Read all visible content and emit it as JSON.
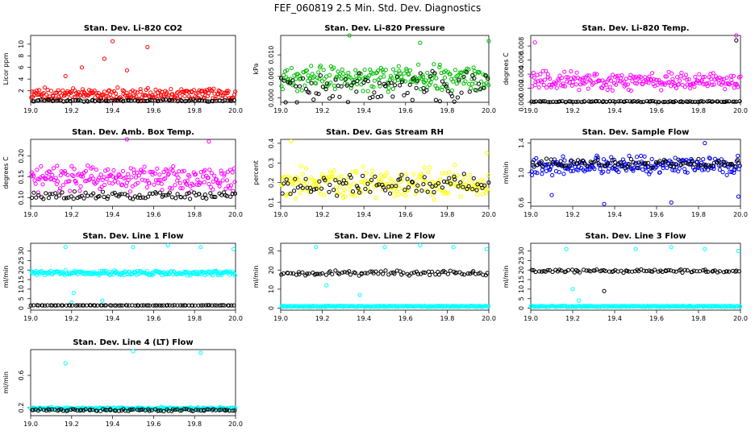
{
  "page": {
    "title": "FEF_060819  2.5 Min. Std. Dev. Diagnostics"
  },
  "chart_data": [
    {
      "type": "scatter",
      "title": "Stan. Dev. Li-820 CO2",
      "ylabel": "Licor ppm",
      "xlim": [
        19.0,
        20.0
      ],
      "ylim": [
        0,
        11.5
      ],
      "xticks": [
        "19.0",
        "19.2",
        "19.4",
        "19.6",
        "19.8",
        "20.0"
      ],
      "yticks": [
        2,
        4,
        6,
        8,
        10
      ],
      "series": [
        {
          "name": "primary",
          "color": "#ff0000",
          "base": 1.4,
          "spread": 1.2,
          "spikes": [
            [
              19.17,
              4.5
            ],
            [
              19.25,
              6.0
            ],
            [
              19.36,
              7.5
            ],
            [
              19.4,
              10.5
            ],
            [
              19.47,
              5.5
            ],
            [
              19.57,
              9.5
            ],
            [
              19.85,
              2.0
            ]
          ]
        },
        {
          "name": "reference",
          "color": "#000000",
          "base": 0.3,
          "spread": 0.2,
          "spikes": []
        }
      ]
    },
    {
      "type": "scatter",
      "title": "Stan. Dev. Li-820 Pressure",
      "ylabel": "kPa",
      "xlim": [
        19.0,
        20.0
      ],
      "ylim": [
        -0.001,
        0.0145
      ],
      "xticks": [
        "19.0",
        "19.2",
        "19.4",
        "19.6",
        "19.8",
        "20.0"
      ],
      "yticks": [
        0.0,
        0.005,
        0.01
      ],
      "series": [
        {
          "name": "primary",
          "color": "#00bb00",
          "base": 0.0045,
          "spread": 0.0035,
          "spikes": [
            [
              19.33,
              0.0145
            ],
            [
              19.67,
              0.0128
            ],
            [
              20.0,
              0.0132
            ]
          ]
        },
        {
          "name": "reference",
          "color": "#000000",
          "base": 0.0025,
          "spread": 0.0045,
          "spikes": []
        }
      ]
    },
    {
      "type": "scatter",
      "title": "Stan. Dev. Li-820 Temp.",
      "ylabel": "degrees C",
      "xlim": [
        19.0,
        20.0
      ],
      "ylim": [
        0,
        0.0095
      ],
      "xticks": [
        "19.0",
        "19.2",
        "19.4",
        "19.6",
        "19.8",
        "20.0"
      ],
      "yticks": [
        0.0,
        0.002,
        0.004,
        0.006,
        0.008
      ],
      "series": [
        {
          "name": "primary",
          "color": "#ff00ff",
          "base": 0.003,
          "spread": 0.0015,
          "spikes": [
            [
              19.02,
              0.0085
            ],
            [
              19.98,
              0.0095
            ]
          ]
        },
        {
          "name": "reference",
          "color": "#000000",
          "base": 0.0001,
          "spread": 0.0001,
          "spikes": [
            [
              19.98,
              0.0088
            ]
          ]
        }
      ]
    },
    {
      "type": "scatter",
      "title": "Stan. Dev. Amb. Box Temp.",
      "ylabel": "degrees C",
      "xlim": [
        19.0,
        20.0
      ],
      "ylim": [
        0.08,
        0.24
      ],
      "xticks": [
        "19.0",
        "19.2",
        "19.4",
        "19.6",
        "19.8",
        "20.0"
      ],
      "yticks": [
        0.1,
        0.15,
        0.2
      ],
      "series": [
        {
          "name": "primary",
          "color": "#ff00ff",
          "base": 0.145,
          "spread": 0.035,
          "spikes": [
            [
              19.47,
              0.24
            ],
            [
              19.87,
              0.235
            ]
          ]
        },
        {
          "name": "reference",
          "color": "#000000",
          "base": 0.105,
          "spread": 0.012,
          "spikes": []
        }
      ]
    },
    {
      "type": "scatter",
      "title": "Stan. Dev. Gas Stream RH",
      "ylabel": "percent",
      "xlim": [
        19.0,
        20.0
      ],
      "ylim": [
        0.08,
        0.42
      ],
      "xticks": [
        "19.0",
        "19.2",
        "19.4",
        "19.6",
        "19.8",
        "20.0"
      ],
      "yticks": [
        0.1,
        0.2,
        0.3,
        0.4
      ],
      "series": [
        {
          "name": "primary",
          "color": "#ffff00",
          "base": 0.2,
          "spread": 0.09,
          "spikes": [
            [
              19.05,
              0.41
            ],
            [
              19.99,
              0.35
            ]
          ]
        },
        {
          "name": "reference",
          "color": "#000000",
          "base": 0.19,
          "spread": 0.06,
          "spikes": []
        }
      ]
    },
    {
      "type": "scatter",
      "title": "Stan. Dev. Sample Flow",
      "ylabel": "ml/min",
      "xlim": [
        19.0,
        20.0
      ],
      "ylim": [
        0.55,
        1.45
      ],
      "xticks": [
        "19.0",
        "19.2",
        "19.4",
        "19.6",
        "19.8",
        "20.0"
      ],
      "yticks": [
        0.6,
        1.0,
        1.4
      ],
      "series": [
        {
          "name": "primary",
          "color": "#0000ee",
          "base": 1.1,
          "spread": 0.15,
          "spikes": [
            [
              19.1,
              0.7
            ],
            [
              19.35,
              0.58
            ],
            [
              19.67,
              0.6
            ],
            [
              19.83,
              1.4
            ],
            [
              19.99,
              0.68
            ]
          ]
        },
        {
          "name": "reference",
          "color": "#000000",
          "base": 1.12,
          "spread": 0.08,
          "spikes": []
        }
      ]
    },
    {
      "type": "scatter",
      "title": "Stan. Dev. Line 1 Flow",
      "ylabel": "ml/min",
      "xlim": [
        19.0,
        20.0
      ],
      "ylim": [
        -1,
        34
      ],
      "xticks": [
        "19.0",
        "19.2",
        "19.4",
        "19.6",
        "19.8",
        "20.0"
      ],
      "yticks": [
        0,
        5,
        10,
        15,
        20,
        25,
        30
      ],
      "series": [
        {
          "name": "primary",
          "color": "#00ffff",
          "base": 18.5,
          "spread": 1.5,
          "spikes": [
            [
              19.17,
              32
            ],
            [
              19.5,
              32
            ],
            [
              19.67,
              33
            ],
            [
              19.83,
              32
            ],
            [
              19.99,
              31
            ],
            [
              19.2,
              3
            ],
            [
              19.21,
              8
            ],
            [
              19.35,
              4
            ]
          ]
        },
        {
          "name": "reference",
          "color": "#000000",
          "base": 1.5,
          "spread": 0.1,
          "spikes": []
        }
      ]
    },
    {
      "type": "scatter",
      "title": "Stan. Dev. Line 2 Flow",
      "ylabel": "ml/min",
      "xlim": [
        19.0,
        20.0
      ],
      "ylim": [
        -1,
        34
      ],
      "xticks": [
        "19.0",
        "19.2",
        "19.4",
        "19.6",
        "19.8",
        "20.0"
      ],
      "yticks": [
        0,
        10,
        20,
        30
      ],
      "series": [
        {
          "name": "primary",
          "color": "#00ffff",
          "base": 1.0,
          "spread": 0.3,
          "spikes": [
            [
              19.17,
              32
            ],
            [
              19.5,
              32
            ],
            [
              19.67,
              33
            ],
            [
              19.83,
              32
            ],
            [
              19.99,
              31
            ],
            [
              19.22,
              12
            ],
            [
              19.38,
              7
            ]
          ]
        },
        {
          "name": "reference",
          "color": "#000000",
          "base": 18.5,
          "spread": 1.5,
          "spikes": []
        }
      ]
    },
    {
      "type": "scatter",
      "title": "Stan. Dev. Line 3 Flow",
      "ylabel": "ml/min",
      "xlim": [
        19.0,
        20.0
      ],
      "ylim": [
        -1,
        34
      ],
      "xticks": [
        "19.0",
        "19.2",
        "19.4",
        "19.6",
        "19.8",
        "20.0"
      ],
      "yticks": [
        0,
        5,
        10,
        15,
        20,
        25,
        30
      ],
      "series": [
        {
          "name": "primary",
          "color": "#00ffff",
          "base": 1.0,
          "spread": 0.3,
          "spikes": [
            [
              19.17,
              31
            ],
            [
              19.5,
              31
            ],
            [
              19.67,
              32
            ],
            [
              19.83,
              31
            ],
            [
              19.99,
              30
            ],
            [
              19.2,
              10
            ],
            [
              19.23,
              4
            ]
          ]
        },
        {
          "name": "reference",
          "color": "#000000",
          "base": 19.5,
          "spread": 1.0,
          "spikes": [
            [
              19.35,
              9
            ]
          ]
        }
      ]
    },
    {
      "type": "scatter",
      "title": "Stan. Dev. Line 4 (LT) Flow",
      "ylabel": "ml/min",
      "xlim": [
        19.0,
        20.0
      ],
      "ylim": [
        0.1,
        0.92
      ],
      "xticks": [
        "19.0",
        "19.2",
        "19.4",
        "19.6",
        "19.8",
        "20.0"
      ],
      "yticks": [
        0.2,
        0.6
      ],
      "series": [
        {
          "name": "primary",
          "color": "#00ffff",
          "base": 0.19,
          "spread": 0.02,
          "spikes": [
            [
              19.17,
              0.75
            ],
            [
              19.5,
              0.9
            ],
            [
              19.83,
              0.88
            ]
          ]
        },
        {
          "name": "reference",
          "color": "#000000",
          "base": 0.17,
          "spread": 0.02,
          "spikes": []
        }
      ]
    }
  ]
}
